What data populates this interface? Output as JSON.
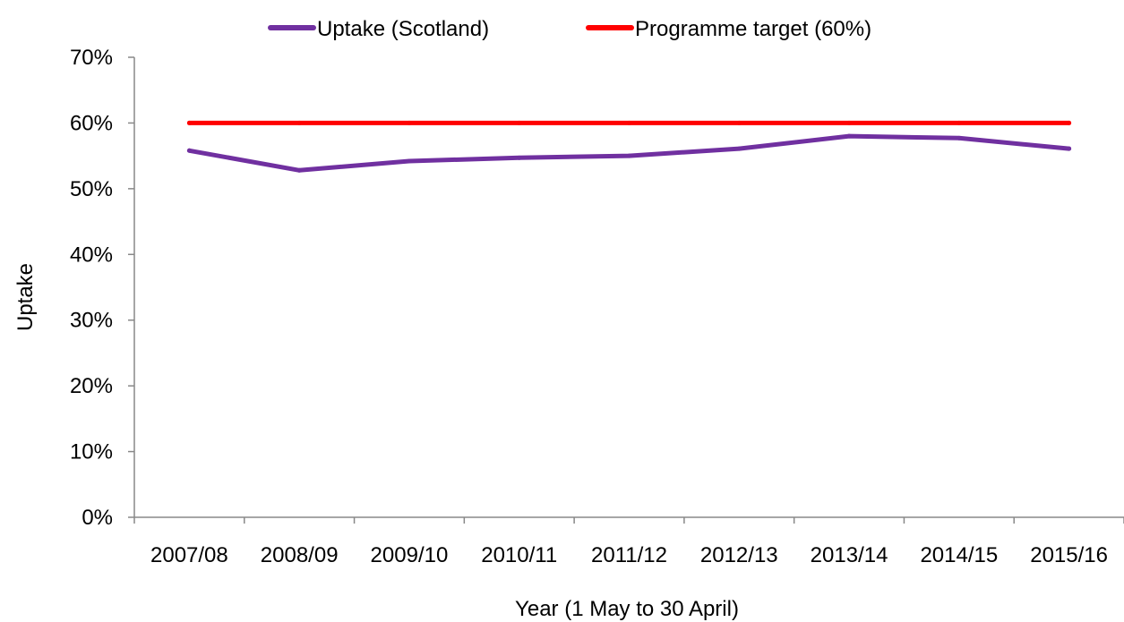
{
  "chart_data": {
    "type": "line",
    "title": "",
    "xlabel": "Year (1 May to 30 April)",
    "ylabel": "Uptake",
    "categories": [
      "2007/08",
      "2008/09",
      "2009/10",
      "2010/11",
      "2011/12",
      "2012/13",
      "2013/14",
      "2014/15",
      "2015/16"
    ],
    "series": [
      {
        "name": "Uptake (Scotland)",
        "color": "#7030A0",
        "values": [
          0.558,
          0.528,
          0.542,
          0.547,
          0.55,
          0.561,
          0.58,
          0.577,
          0.561
        ]
      },
      {
        "name": "Programme target (60%)",
        "color": "#FF0000",
        "values": [
          0.6,
          0.6,
          0.6,
          0.6,
          0.6,
          0.6,
          0.6,
          0.6,
          0.6
        ]
      }
    ],
    "ylim": [
      0,
      0.7
    ],
    "yticks": [
      0,
      0.1,
      0.2,
      0.3,
      0.4,
      0.5,
      0.6,
      0.7
    ],
    "ytick_labels": [
      "0%",
      "10%",
      "20%",
      "30%",
      "40%",
      "50%",
      "60%",
      "70%"
    ],
    "grid": false,
    "legend_position": "top"
  }
}
